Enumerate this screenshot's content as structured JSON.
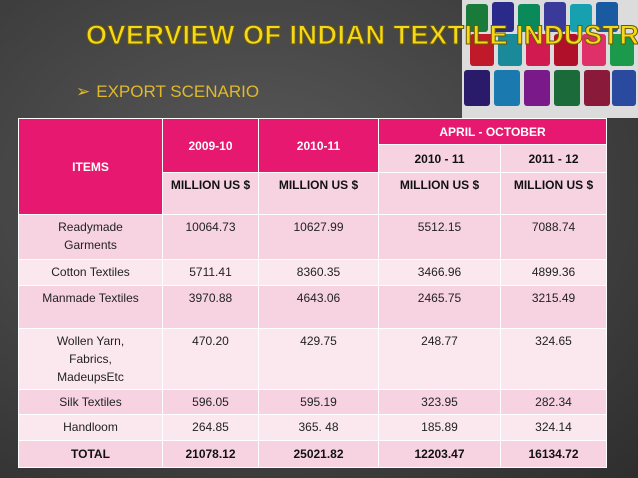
{
  "title": "OVERVIEW OF INDIAN TEXTILE INDUSTRY",
  "bullet": "EXPORT SCENARIO",
  "table": {
    "header": {
      "items": "ITEMS",
      "period_group": "APRIL - OCTOBER",
      "years": [
        "2009-10",
        "2010-11",
        "2010 - 11",
        "2011 - 12"
      ],
      "units": [
        "MILLION US $",
        "MILLION US $",
        "MILLION US $",
        "MILLION US $"
      ]
    },
    "rows": [
      [
        "Readymade Garments",
        "10064.73",
        "10627.99",
        "5512.15",
        "7088.74"
      ],
      [
        "Cotton Textiles",
        "5711.41",
        "8360.35",
        "3466.96",
        "4899.36"
      ],
      [
        "Manmade Textiles",
        "3970.88",
        "4643.06",
        "2465.75",
        "3215.49"
      ],
      [
        "Wollen Yarn, Fabrics, MadeupsEtc",
        "470.20",
        "429.75",
        "248.77",
        "324.65"
      ],
      [
        "Silk Textiles",
        "596.05",
        "595.19",
        "323.95",
        "282.34"
      ],
      [
        "Handloom",
        "264.85",
        "365. 48",
        "185.89",
        "324.14"
      ],
      [
        "TOTAL",
        "21078.12",
        "25021.82",
        "12203.47",
        "16134.72"
      ]
    ]
  }
}
